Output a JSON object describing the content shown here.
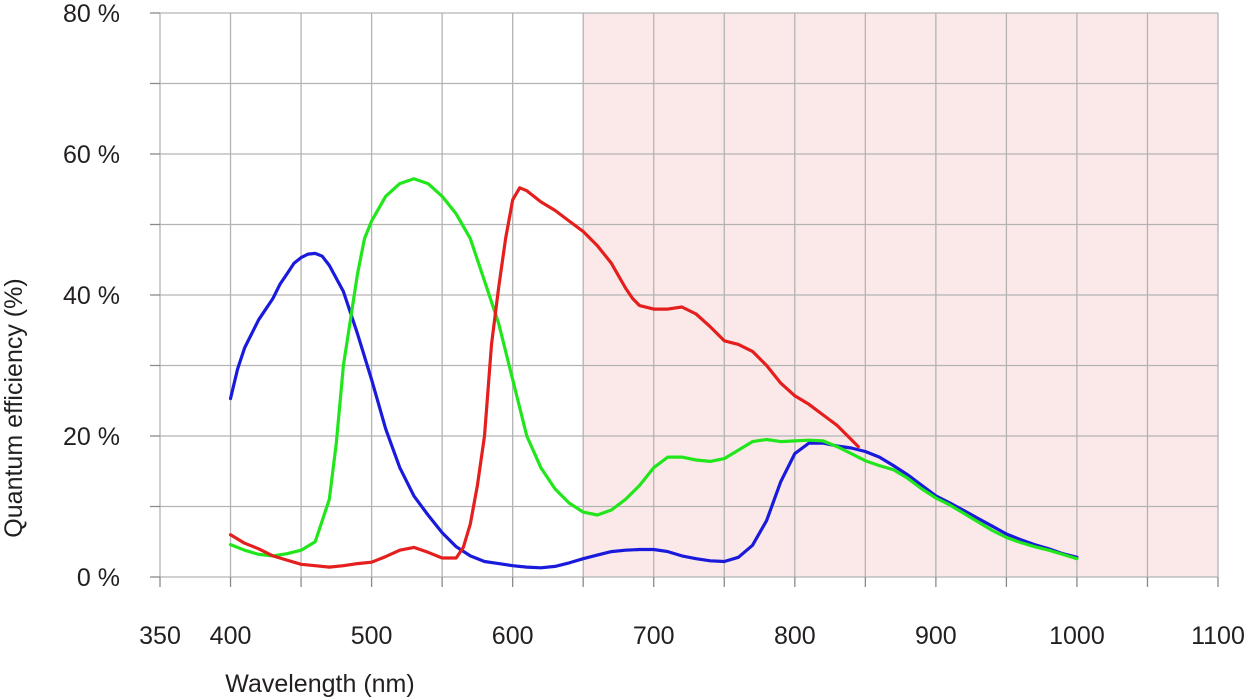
{
  "chart_data": {
    "type": "line",
    "title": "",
    "xlabel": "Wavelength (nm)",
    "ylabel": "Quantum efficiency (%)",
    "xlim": [
      350,
      1100
    ],
    "ylim": [
      0,
      80
    ],
    "grid": true,
    "x_ticks": [
      "350",
      "400",
      "500",
      "600",
      "700",
      "800",
      "900",
      "1000",
      "1100"
    ],
    "y_ticks": [
      "0 %",
      "20 %",
      "40 %",
      "60 %",
      "80 %"
    ],
    "shaded_region": {
      "x_from": 650,
      "x_to": 1100,
      "color": "#fbe9e9"
    },
    "series": [
      {
        "color": "#1a1adc",
        "points": [
          [
            400,
            25.3
          ],
          [
            405,
            29.5
          ],
          [
            410,
            32.5
          ],
          [
            420,
            36.5
          ],
          [
            430,
            39.5
          ],
          [
            435,
            41.5
          ],
          [
            440,
            43
          ],
          [
            445,
            44.5
          ],
          [
            450,
            45.3
          ],
          [
            455,
            45.8
          ],
          [
            460,
            45.9
          ],
          [
            465,
            45.5
          ],
          [
            470,
            44.2
          ],
          [
            480,
            40.5
          ],
          [
            490,
            34.5
          ],
          [
            500,
            28
          ],
          [
            510,
            21
          ],
          [
            520,
            15.5
          ],
          [
            530,
            11.5
          ],
          [
            540,
            8.8
          ],
          [
            550,
            6.3
          ],
          [
            560,
            4.3
          ],
          [
            570,
            3
          ],
          [
            580,
            2.2
          ],
          [
            590,
            1.9
          ],
          [
            600,
            1.6
          ],
          [
            610,
            1.4
          ],
          [
            620,
            1.3
          ],
          [
            630,
            1.5
          ],
          [
            640,
            2
          ],
          [
            650,
            2.6
          ],
          [
            660,
            3.1
          ],
          [
            670,
            3.6
          ],
          [
            680,
            3.8
          ],
          [
            690,
            3.9
          ],
          [
            700,
            3.9
          ],
          [
            710,
            3.6
          ],
          [
            720,
            3
          ],
          [
            730,
            2.6
          ],
          [
            740,
            2.3
          ],
          [
            750,
            2.2
          ],
          [
            760,
            2.8
          ],
          [
            770,
            4.5
          ],
          [
            780,
            8
          ],
          [
            790,
            13.5
          ],
          [
            800,
            17.5
          ],
          [
            810,
            19
          ],
          [
            820,
            19
          ],
          [
            830,
            18.6
          ],
          [
            840,
            18.3
          ],
          [
            850,
            17.8
          ],
          [
            860,
            17
          ],
          [
            870,
            15.8
          ],
          [
            880,
            14.5
          ],
          [
            890,
            13
          ],
          [
            900,
            11.5
          ],
          [
            910,
            10.5
          ],
          [
            920,
            9.4
          ],
          [
            930,
            8.3
          ],
          [
            940,
            7.2
          ],
          [
            950,
            6.1
          ],
          [
            960,
            5.3
          ],
          [
            970,
            4.6
          ],
          [
            980,
            4
          ],
          [
            990,
            3.3
          ],
          [
            1000,
            2.8
          ]
        ]
      },
      {
        "color": "#22e61c",
        "points": [
          [
            400,
            4.6
          ],
          [
            410,
            3.8
          ],
          [
            420,
            3.2
          ],
          [
            430,
            3
          ],
          [
            440,
            3.3
          ],
          [
            450,
            3.8
          ],
          [
            460,
            5
          ],
          [
            470,
            11
          ],
          [
            475,
            19
          ],
          [
            480,
            30
          ],
          [
            490,
            43
          ],
          [
            495,
            48
          ],
          [
            500,
            50.5
          ],
          [
            510,
            54
          ],
          [
            520,
            55.8
          ],
          [
            530,
            56.5
          ],
          [
            540,
            55.8
          ],
          [
            550,
            54
          ],
          [
            560,
            51.5
          ],
          [
            570,
            48
          ],
          [
            580,
            42
          ],
          [
            590,
            36
          ],
          [
            600,
            28
          ],
          [
            610,
            20
          ],
          [
            620,
            15.5
          ],
          [
            630,
            12.5
          ],
          [
            640,
            10.5
          ],
          [
            650,
            9.2
          ],
          [
            660,
            8.8
          ],
          [
            670,
            9.5
          ],
          [
            680,
            11
          ],
          [
            690,
            13
          ],
          [
            700,
            15.5
          ],
          [
            710,
            17
          ],
          [
            720,
            17
          ],
          [
            730,
            16.6
          ],
          [
            740,
            16.4
          ],
          [
            750,
            16.8
          ],
          [
            760,
            18
          ],
          [
            770,
            19.2
          ],
          [
            780,
            19.5
          ],
          [
            790,
            19.2
          ],
          [
            800,
            19.3
          ],
          [
            810,
            19.4
          ],
          [
            820,
            19.3
          ],
          [
            830,
            18.5
          ],
          [
            840,
            17.5
          ],
          [
            850,
            16.5
          ],
          [
            860,
            15.8
          ],
          [
            870,
            15.2
          ],
          [
            880,
            14
          ],
          [
            890,
            12.5
          ],
          [
            900,
            11.2
          ],
          [
            910,
            10.2
          ],
          [
            920,
            9
          ],
          [
            930,
            7.8
          ],
          [
            940,
            6.6
          ],
          [
            950,
            5.6
          ],
          [
            960,
            4.9
          ],
          [
            970,
            4.3
          ],
          [
            980,
            3.8
          ],
          [
            990,
            3.2
          ],
          [
            1000,
            2.6
          ]
        ]
      },
      {
        "color": "#e51e1e",
        "points": [
          [
            400,
            6
          ],
          [
            410,
            4.8
          ],
          [
            420,
            4
          ],
          [
            430,
            3
          ],
          [
            440,
            2.4
          ],
          [
            450,
            1.8
          ],
          [
            460,
            1.6
          ],
          [
            470,
            1.4
          ],
          [
            480,
            1.6
          ],
          [
            490,
            1.9
          ],
          [
            500,
            2.1
          ],
          [
            510,
            2.9
          ],
          [
            520,
            3.8
          ],
          [
            530,
            4.2
          ],
          [
            540,
            3.5
          ],
          [
            550,
            2.7
          ],
          [
            560,
            2.7
          ],
          [
            565,
            4.2
          ],
          [
            570,
            7.5
          ],
          [
            575,
            13
          ],
          [
            580,
            20
          ],
          [
            585,
            33
          ],
          [
            590,
            41
          ],
          [
            595,
            48
          ],
          [
            600,
            53.5
          ],
          [
            605,
            55.2
          ],
          [
            610,
            54.8
          ],
          [
            620,
            53.2
          ],
          [
            630,
            52
          ],
          [
            640,
            50.5
          ],
          [
            650,
            49
          ],
          [
            660,
            47
          ],
          [
            670,
            44.5
          ],
          [
            680,
            41
          ],
          [
            685,
            39.5
          ],
          [
            690,
            38.5
          ],
          [
            700,
            38
          ],
          [
            710,
            38
          ],
          [
            720,
            38.3
          ],
          [
            730,
            37.3
          ],
          [
            740,
            35.5
          ],
          [
            750,
            33.5
          ],
          [
            760,
            33
          ],
          [
            770,
            32
          ],
          [
            780,
            30
          ],
          [
            790,
            27.5
          ],
          [
            800,
            25.7
          ],
          [
            810,
            24.5
          ],
          [
            820,
            23
          ],
          [
            830,
            21.5
          ],
          [
            840,
            19.5
          ],
          [
            845,
            18.5
          ]
        ]
      }
    ]
  }
}
